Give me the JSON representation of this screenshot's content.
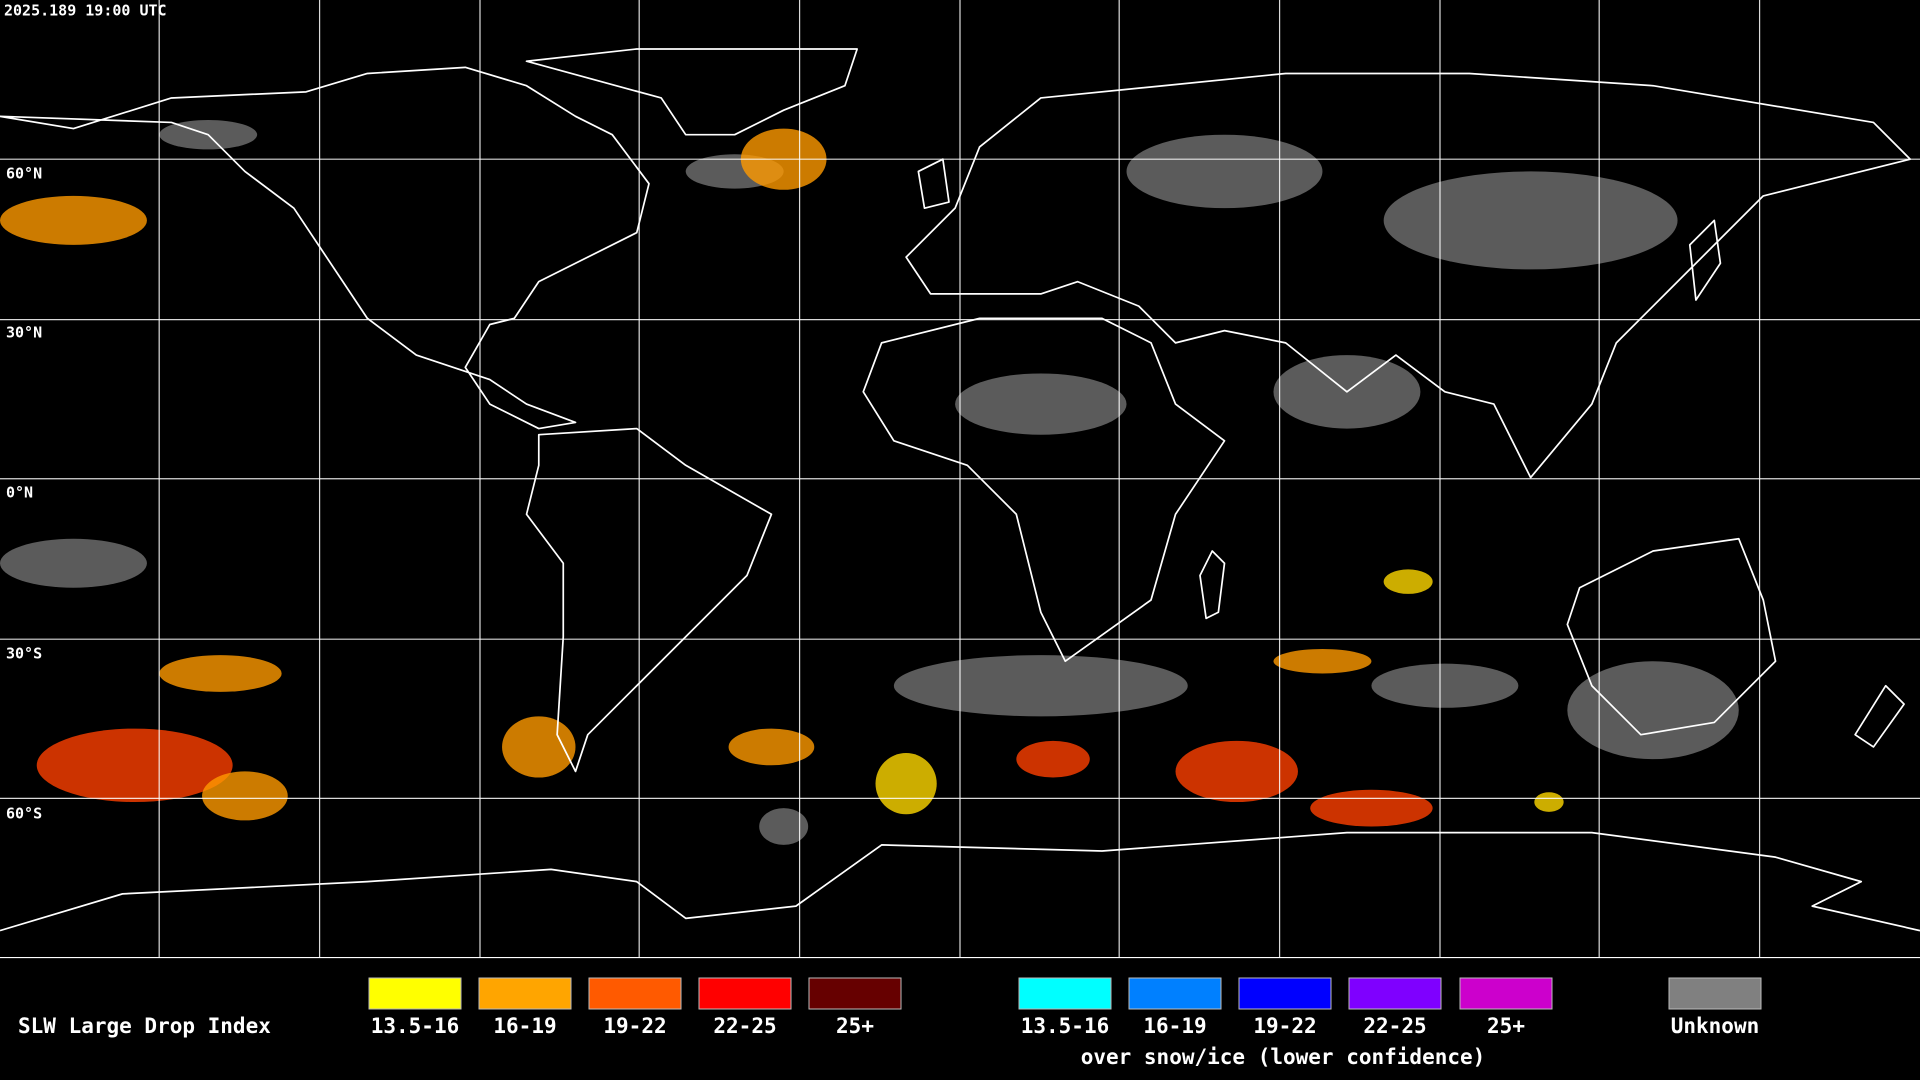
{
  "timestamp": "2025.189 19:00 UTC",
  "latitude_labels": [
    "60°N",
    "30°N",
    "0°N",
    "30°S",
    "60°S"
  ],
  "legend": {
    "title": "SLW Large Drop Index",
    "items": [
      {
        "label": "13.5-16",
        "color": "#ffff00"
      },
      {
        "label": "16-19",
        "color": "#ffa500"
      },
      {
        "label": "19-22",
        "color": "#ff5a00"
      },
      {
        "label": "22-25",
        "color": "#ff0000"
      },
      {
        "label": "25+",
        "color": "#660000"
      }
    ],
    "snow_ice_items": [
      {
        "label": "13.5-16",
        "color": "#00ffff"
      },
      {
        "label": "16-19",
        "color": "#0080ff"
      },
      {
        "label": "19-22",
        "color": "#0000ff"
      },
      {
        "label": "22-25",
        "color": "#7f00ff"
      },
      {
        "label": "25+",
        "color": "#cc00cc"
      }
    ],
    "snow_ice_note": "over snow/ice (lower confidence)",
    "unknown": {
      "label": "Unknown",
      "color": "#808080"
    }
  }
}
